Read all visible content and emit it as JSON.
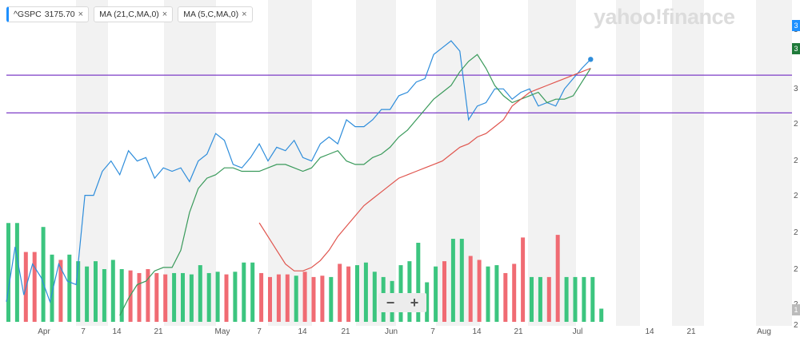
{
  "legend": {
    "chips": [
      {
        "label": "^GSPC",
        "value": "3175.70",
        "close": "×"
      },
      {
        "label": "MA (21,C,MA,0)",
        "close": "×"
      },
      {
        "label": "MA (5,C,MA,0)",
        "close": "×"
      }
    ]
  },
  "watermark": "yahoo!finance",
  "zoom": {
    "minus": "−",
    "plus": "+"
  },
  "y_axis_visible_labels": [
    "3",
    "3",
    "3",
    "2",
    "2",
    "2",
    "2",
    "2",
    "2",
    "2",
    "1"
  ],
  "badges": {
    "price": "3",
    "ma21": "3",
    "volume": "1"
  },
  "colors": {
    "price": "#2e8ddb",
    "ma5": "#3a9a5b",
    "ma21": "#e0554e",
    "trendline": "#7d3cc7",
    "volume_up": "#3cc57f",
    "volume_down": "#f06b73",
    "shade": "#f2f2f2"
  },
  "chart_data": {
    "type": "line",
    "x_tick_labels": [
      "Apr",
      "7",
      "14",
      "21",
      "May",
      "7",
      "14",
      "21",
      "Jun",
      "7",
      "14",
      "21",
      "Jul",
      "14",
      "21",
      "Aug"
    ],
    "series": [
      {
        "name": "^GSPC",
        "values": [
          2470,
          2630,
          2490,
          2580,
          2540,
          2470,
          2580,
          2530,
          2520,
          2780,
          2780,
          2850,
          2880,
          2840,
          2910,
          2880,
          2890,
          2830,
          2860,
          2850,
          2860,
          2820,
          2880,
          2900,
          2960,
          2940,
          2870,
          2860,
          2890,
          2930,
          2880,
          2920,
          2910,
          2940,
          2890,
          2880,
          2930,
          2950,
          2930,
          3000,
          2980,
          2980,
          3000,
          3030,
          3030,
          3070,
          3080,
          3110,
          3120,
          3190,
          3210,
          3230,
          3200,
          3000,
          3040,
          3050,
          3090,
          3090,
          3060,
          3080,
          3090,
          3040,
          3050,
          3040,
          3090,
          3120,
          3150,
          3176
        ]
      },
      {
        "name": "MA (5,C,MA,0)",
        "values": [
          2430,
          2480,
          2520,
          2530,
          2560,
          2570,
          2570,
          2620,
          2730,
          2800,
          2830,
          2840,
          2860,
          2860,
          2850,
          2850,
          2850,
          2860,
          2870,
          2870,
          2860,
          2850,
          2860,
          2890,
          2900,
          2910,
          2880,
          2870,
          2870,
          2890,
          2900,
          2920,
          2950,
          2970,
          3000,
          3030,
          3060,
          3080,
          3100,
          3140,
          3170,
          3190,
          3150,
          3100,
          3070,
          3050,
          3060,
          3070,
          3080,
          3050,
          3060,
          3060,
          3070,
          3110,
          3150
        ]
      },
      {
        "name": "MA (21,C,MA,0)",
        "values": [
          2700,
          2660,
          2620,
          2580,
          2560,
          2560,
          2570,
          2590,
          2620,
          2660,
          2690,
          2720,
          2750,
          2770,
          2790,
          2810,
          2830,
          2840,
          2850,
          2860,
          2870,
          2880,
          2900,
          2920,
          2930,
          2950,
          2960,
          2980,
          3000,
          3040,
          3060,
          3080,
          3090,
          3100,
          3110,
          3120,
          3130,
          3140,
          3150
        ]
      }
    ],
    "horizontal_lines": [
      3130,
      3020
    ],
    "volume": {
      "values": [
        7.5,
        7.5,
        5.3,
        5.3,
        7.2,
        5.1,
        4.7,
        5.1,
        4.6,
        4.2,
        4.6,
        4.0,
        4.7,
        4.0,
        3.9,
        3.7,
        4.0,
        3.7,
        3.6,
        3.7,
        3.7,
        3.6,
        4.3,
        3.7,
        3.8,
        3.6,
        3.8,
        4.5,
        4.5,
        3.7,
        3.4,
        3.6,
        3.6,
        3.5,
        3.8,
        3.4,
        3.5,
        3.4,
        4.4,
        4.2,
        4.3,
        4.5,
        3.8,
        3.4,
        3.1,
        4.3,
        4.6,
        6.0,
        3.0,
        4.2,
        4.6,
        6.3,
        6.3,
        5.0,
        4.7,
        4.2,
        4.3,
        3.7,
        4.4,
        6.4,
        3.4,
        3.4,
        3.4,
        6.6,
        3.4,
        3.4,
        3.4,
        3.4,
        1.0
      ],
      "up": [
        1,
        1,
        0,
        0,
        1,
        1,
        0,
        1,
        1,
        1,
        1,
        1,
        1,
        1,
        0,
        0,
        0,
        0,
        0,
        1,
        1,
        1,
        1,
        1,
        1,
        0,
        1,
        1,
        1,
        0,
        0,
        0,
        0,
        1,
        0,
        0,
        0,
        1,
        0,
        0,
        1,
        1,
        1,
        1,
        1,
        1,
        1,
        1,
        1,
        1,
        0,
        1,
        1,
        0,
        0,
        1,
        1,
        0,
        0,
        0,
        1,
        1,
        0,
        0,
        1,
        1,
        1,
        1,
        1
      ]
    }
  }
}
